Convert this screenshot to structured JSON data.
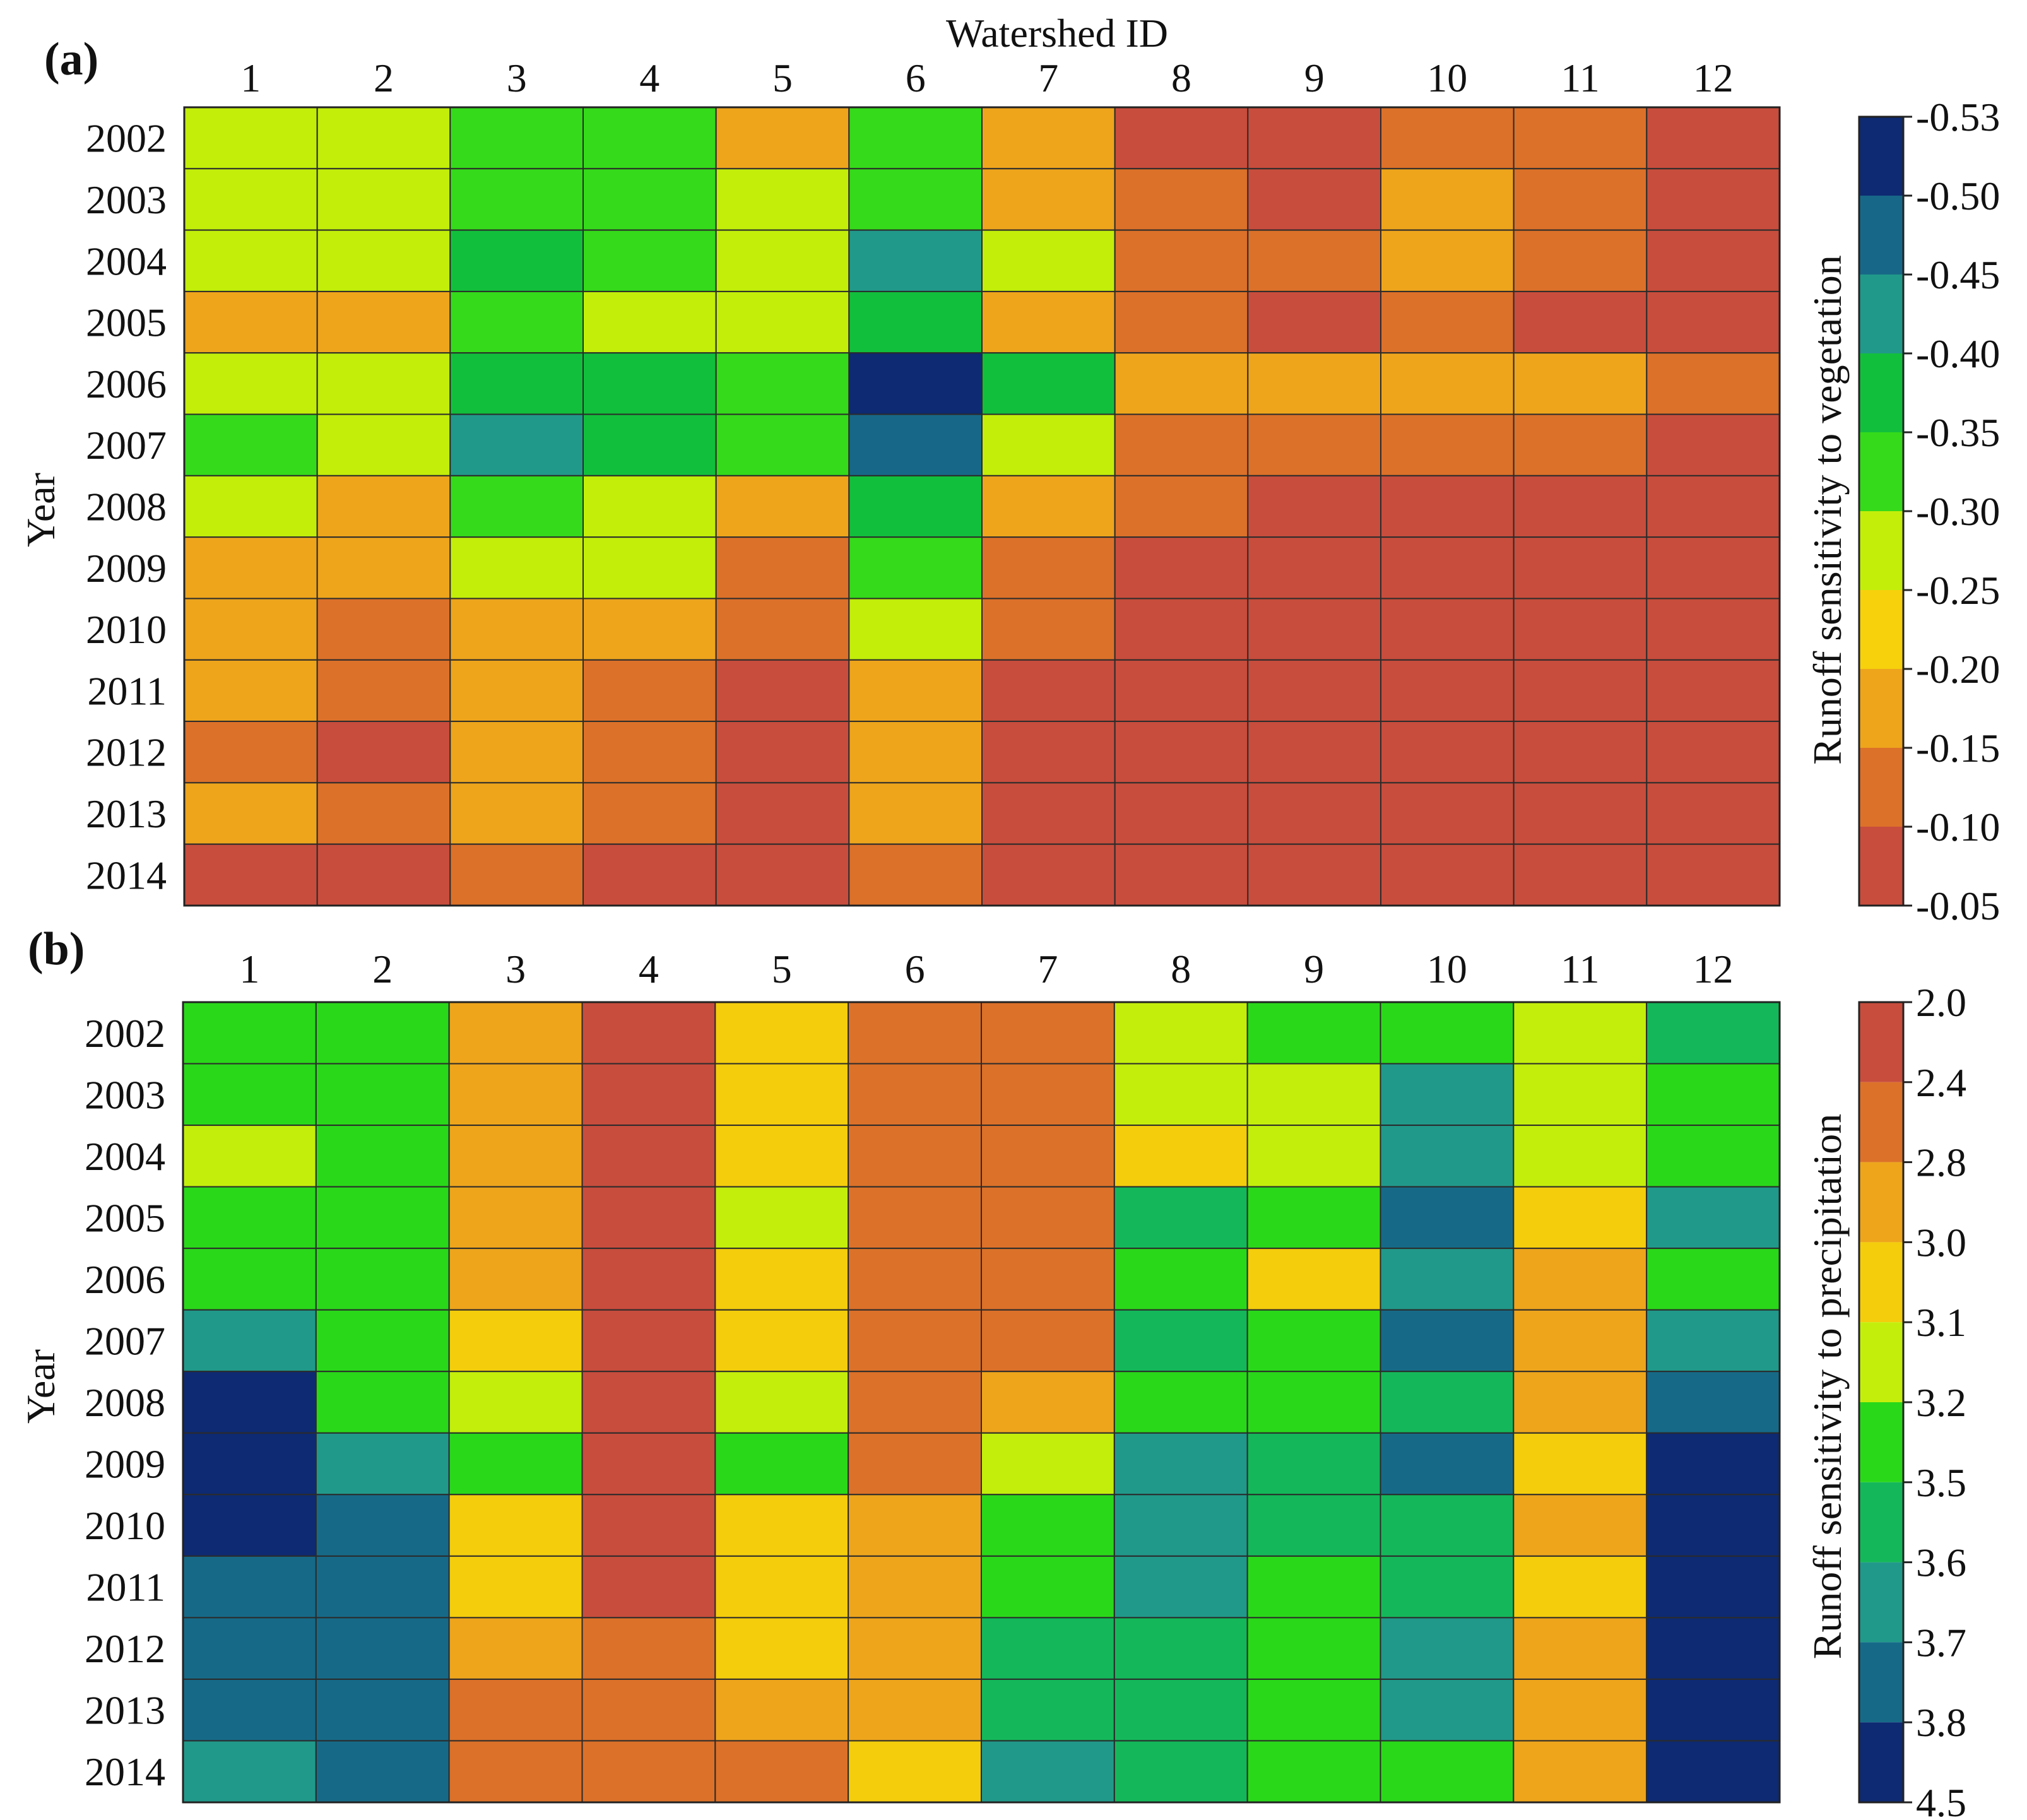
{
  "chart_data": [
    {
      "type": "heatmap",
      "panel_label": "(a)",
      "title": "",
      "xlabel": "Watershed ID",
      "ylabel": "Year",
      "x_categories": [
        "1",
        "2",
        "3",
        "4",
        "5",
        "6",
        "7",
        "8",
        "9",
        "10",
        "11",
        "12"
      ],
      "y_categories": [
        "2002",
        "2003",
        "2004",
        "2005",
        "2006",
        "2007",
        "2008",
        "2009",
        "2010",
        "2011",
        "2012",
        "2013",
        "2014"
      ],
      "colorbar": {
        "label": "Runoff sensitivity to vegetation",
        "tick_labels": [
          "-0.53",
          "-0.50",
          "-0.45",
          "-0.40",
          "-0.35",
          "-0.30",
          "-0.25",
          "-0.20",
          "-0.15",
          "-0.10",
          "-0.05"
        ],
        "colors": [
          "#0d2a72",
          "#176888",
          "#21998a",
          "#12bf3c",
          "#35da1a",
          "#c2ee0a",
          "#f6d10c",
          "#eea51c",
          "#dc7129",
          "#c84d3d"
        ]
      },
      "values": [
        [
          -0.27,
          -0.27,
          -0.32,
          -0.32,
          -0.17,
          -0.32,
          -0.17,
          -0.07,
          -0.07,
          -0.12,
          -0.12,
          -0.02
        ],
        [
          -0.27,
          -0.27,
          -0.32,
          -0.32,
          -0.27,
          -0.32,
          -0.17,
          -0.12,
          -0.07,
          -0.17,
          -0.12,
          -0.07
        ],
        [
          -0.27,
          -0.27,
          -0.37,
          -0.32,
          -0.27,
          -0.42,
          -0.27,
          -0.12,
          -0.12,
          -0.17,
          -0.12,
          -0.02
        ],
        [
          -0.17,
          -0.17,
          -0.32,
          -0.27,
          -0.27,
          -0.37,
          -0.17,
          -0.12,
          -0.07,
          -0.12,
          -0.07,
          -0.02
        ],
        [
          -0.27,
          -0.27,
          -0.37,
          -0.37,
          -0.32,
          -0.52,
          -0.37,
          -0.17,
          -0.17,
          -0.17,
          -0.17,
          -0.12
        ],
        [
          -0.32,
          -0.27,
          -0.42,
          -0.37,
          -0.32,
          -0.47,
          -0.27,
          -0.12,
          -0.12,
          -0.12,
          -0.12,
          -0.07
        ],
        [
          -0.27,
          -0.17,
          -0.32,
          -0.27,
          -0.17,
          -0.37,
          -0.17,
          -0.12,
          -0.07,
          -0.07,
          -0.07,
          -0.07
        ],
        [
          -0.17,
          -0.17,
          -0.27,
          -0.27,
          -0.12,
          -0.32,
          -0.12,
          -0.07,
          -0.07,
          -0.07,
          -0.07,
          -0.02
        ],
        [
          -0.17,
          -0.12,
          -0.17,
          -0.17,
          -0.12,
          -0.27,
          -0.12,
          -0.07,
          -0.07,
          -0.07,
          -0.07,
          -0.02
        ],
        [
          -0.17,
          -0.12,
          -0.17,
          -0.12,
          -0.07,
          -0.17,
          -0.07,
          -0.02,
          -0.02,
          -0.07,
          -0.02,
          -0.02
        ],
        [
          -0.12,
          -0.07,
          -0.17,
          -0.12,
          -0.07,
          -0.17,
          -0.07,
          -0.02,
          -0.02,
          -0.07,
          -0.02,
          -0.02
        ],
        [
          -0.17,
          -0.12,
          -0.17,
          -0.12,
          -0.07,
          -0.17,
          -0.07,
          -0.02,
          -0.02,
          -0.07,
          -0.07,
          -0.02
        ],
        [
          -0.07,
          -0.07,
          -0.12,
          -0.07,
          -0.07,
          -0.12,
          -0.07,
          -0.02,
          -0.02,
          -0.02,
          -0.02,
          -0.02
        ]
      ]
    },
    {
      "type": "heatmap",
      "panel_label": "(b)",
      "title": "",
      "xlabel": "",
      "ylabel": "Year",
      "x_categories": [
        "1",
        "2",
        "3",
        "4",
        "5",
        "6",
        "7",
        "8",
        "9",
        "10",
        "11",
        "12"
      ],
      "y_categories": [
        "2002",
        "2003",
        "2004",
        "2005",
        "2006",
        "2007",
        "2008",
        "2009",
        "2010",
        "2011",
        "2012",
        "2013",
        "2014"
      ],
      "colorbar": {
        "label": "Runoff sensitivity to precipitation",
        "tick_labels": [
          "2.0",
          "2.4",
          "2.8",
          "3.0",
          "3.1",
          "3.2",
          "3.5",
          "3.6",
          "3.7",
          "3.8",
          "4.5"
        ],
        "colors": [
          "#c84d3d",
          "#dc7129",
          "#eea51c",
          "#f4cd0c",
          "#c3ee0c",
          "#2ad81a",
          "#14b85a",
          "#21998a",
          "#166a88",
          "#0d2a72"
        ]
      },
      "values": [
        [
          3.25,
          3.25,
          2.9,
          2.2,
          3.05,
          2.6,
          2.6,
          3.15,
          3.25,
          3.4,
          3.15,
          3.55
        ],
        [
          3.35,
          3.25,
          2.9,
          2.2,
          3.05,
          2.6,
          2.6,
          3.15,
          3.15,
          3.65,
          3.15,
          3.4
        ],
        [
          3.15,
          3.35,
          2.9,
          2.2,
          3.05,
          2.6,
          2.6,
          3.05,
          3.15,
          3.65,
          3.15,
          3.4
        ],
        [
          3.35,
          3.35,
          2.9,
          2.2,
          3.15,
          2.6,
          2.6,
          3.55,
          3.35,
          3.75,
          3.05,
          3.65
        ],
        [
          3.4,
          3.4,
          2.9,
          2.2,
          3.05,
          2.6,
          2.6,
          3.4,
          3.05,
          3.65,
          2.9,
          3.4
        ],
        [
          3.65,
          3.4,
          3.05,
          2.2,
          3.05,
          2.6,
          2.6,
          3.55,
          3.35,
          3.75,
          2.9,
          3.65
        ],
        [
          4.0,
          3.4,
          3.15,
          2.2,
          3.15,
          2.6,
          2.9,
          3.4,
          3.4,
          3.55,
          2.9,
          3.75
        ],
        [
          4.0,
          3.65,
          3.25,
          2.2,
          3.4,
          2.6,
          3.15,
          3.65,
          3.55,
          3.75,
          3.05,
          4.0
        ],
        [
          4.0,
          3.75,
          3.05,
          2.2,
          3.05,
          2.9,
          3.25,
          3.65,
          3.55,
          3.55,
          2.9,
          4.0
        ],
        [
          3.75,
          3.75,
          3.05,
          2.2,
          3.05,
          2.9,
          3.4,
          3.65,
          3.4,
          3.55,
          3.05,
          4.0
        ],
        [
          3.75,
          3.75,
          2.9,
          2.6,
          3.05,
          2.9,
          3.55,
          3.55,
          3.4,
          3.65,
          2.9,
          4.0
        ],
        [
          3.75,
          3.75,
          2.6,
          2.6,
          2.9,
          2.9,
          3.55,
          3.55,
          3.4,
          3.65,
          2.9,
          4.0
        ],
        [
          3.65,
          3.75,
          2.6,
          2.6,
          2.6,
          3.05,
          3.65,
          3.55,
          3.4,
          3.4,
          2.9,
          4.0
        ]
      ]
    }
  ]
}
